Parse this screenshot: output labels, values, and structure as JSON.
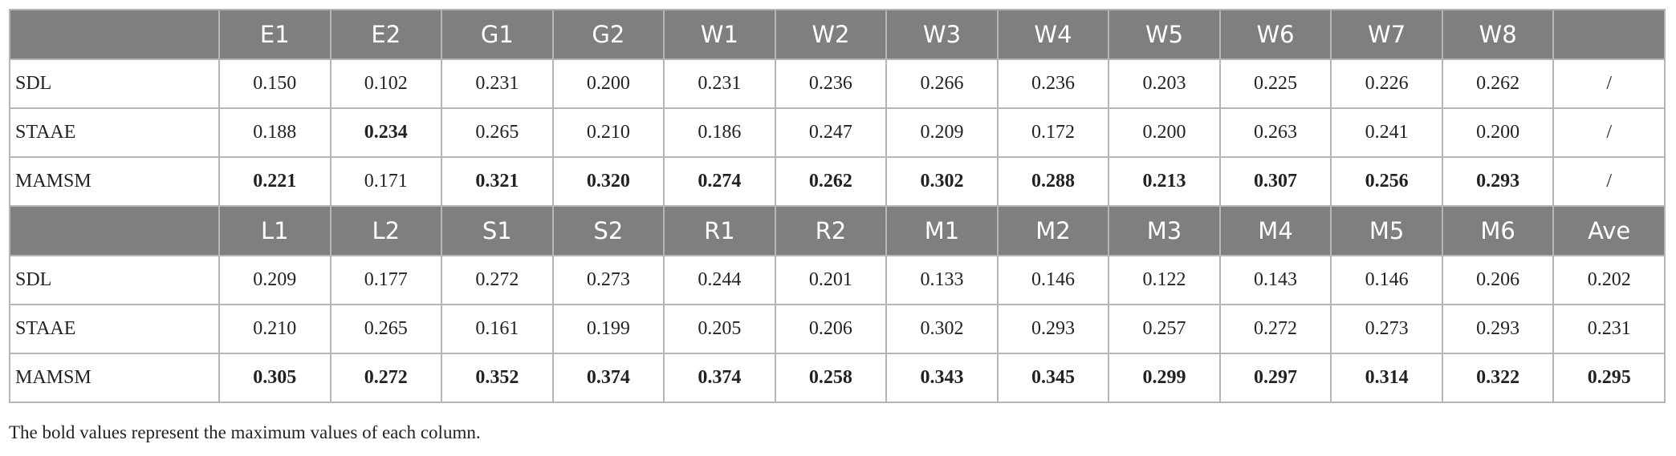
{
  "table": {
    "blocks": [
      {
        "header": [
          "E1",
          "E2",
          "G1",
          "G2",
          "W1",
          "W2",
          "W3",
          "W4",
          "W5",
          "W6",
          "W7",
          "W8"
        ],
        "rows": [
          {
            "label": "SDL",
            "cells": [
              "0.150",
              "0.102",
              "0.231",
              "0.200",
              "0.231",
              "0.236",
              "0.266",
              "0.236",
              "0.203",
              "0.225",
              "0.226",
              "0.262",
              "/"
            ],
            "bold_columns": []
          },
          {
            "label": "STAAE",
            "cells": [
              "0.188",
              "0.234",
              "0.265",
              "0.210",
              "0.186",
              "0.247",
              "0.209",
              "0.172",
              "0.200",
              "0.263",
              "0.241",
              "0.200",
              "/"
            ],
            "bold_columns": [
              1
            ]
          },
          {
            "label": "MAMSM",
            "cells": [
              "0.221",
              "0.171",
              "0.321",
              "0.320",
              "0.274",
              "0.262",
              "0.302",
              "0.288",
              "0.213",
              "0.307",
              "0.256",
              "0.293",
              "/"
            ],
            "bold_columns": [
              0,
              2,
              3,
              4,
              5,
              6,
              7,
              8,
              9,
              10,
              11
            ]
          }
        ]
      },
      {
        "header": [
          "L1",
          "L2",
          "S1",
          "S2",
          "R1",
          "R2",
          "M1",
          "M2",
          "M3",
          "M4",
          "M5",
          "M6",
          "Ave"
        ],
        "rows": [
          {
            "label": "SDL",
            "cells": [
              "0.209",
              "0.177",
              "0.272",
              "0.273",
              "0.244",
              "0.201",
              "0.133",
              "0.146",
              "0.122",
              "0.143",
              "0.146",
              "0.206",
              "0.202"
            ],
            "bold_columns": []
          },
          {
            "label": "STAAE",
            "cells": [
              "0.210",
              "0.265",
              "0.161",
              "0.199",
              "0.205",
              "0.206",
              "0.302",
              "0.293",
              "0.257",
              "0.272",
              "0.273",
              "0.293",
              "0.231"
            ],
            "bold_columns": []
          },
          {
            "label": "MAMSM",
            "cells": [
              "0.305",
              "0.272",
              "0.352",
              "0.374",
              "0.374",
              "0.258",
              "0.343",
              "0.345",
              "0.299",
              "0.297",
              "0.314",
              "0.322",
              "0.295"
            ],
            "bold_columns": [
              0,
              1,
              2,
              3,
              4,
              5,
              6,
              7,
              8,
              9,
              10,
              11,
              12
            ]
          }
        ]
      }
    ]
  },
  "footnote": "The bold values represent the maximum values of each column."
}
